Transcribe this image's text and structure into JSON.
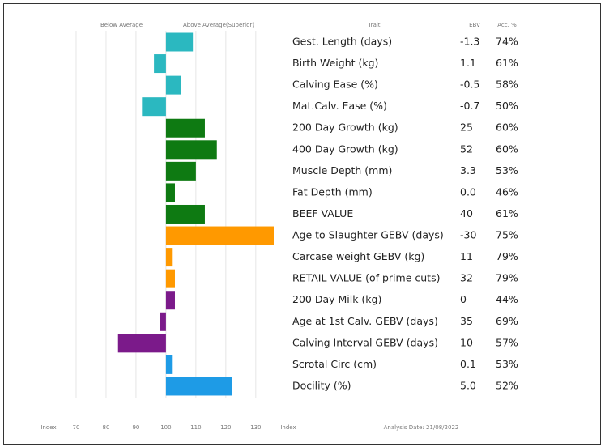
{
  "chart_data": {
    "type": "bar",
    "orientation": "horizontal",
    "header_left": "Below Average",
    "header_right": "Above Average(Superior)",
    "col_trait": "Trait",
    "col_ebv": "EBV",
    "col_acc": "Acc. %",
    "xlabel": "Index",
    "xlabel_right": "Index",
    "footnote": "Analysis Date: 21/08/2022",
    "baseline": 100,
    "categories": [
      "Gest. Length (days)",
      "Birth Weight (kg)",
      "Calving Ease (%)",
      "Mat.Calv. Ease (%)",
      "200 Day Growth (kg)",
      "400 Day Growth (kg)",
      "Muscle Depth (mm)",
      "Fat Depth (mm)",
      "BEEF VALUE",
      "Age to Slaughter GEBV (days)",
      "Carcase weight GEBV (kg)",
      "RETAIL VALUE (of prime cuts)",
      "200 Day Milk (kg)",
      "Age at 1st Calv. GEBV (days)",
      "Calving Interval GEBV (days)",
      "Scrotal Circ (cm)",
      "Docility (%)"
    ],
    "values": [
      109,
      96,
      105,
      92,
      113,
      117,
      110,
      103,
      113,
      136,
      102,
      103,
      103,
      98,
      84,
      102,
      122
    ],
    "colors": [
      "#2bb8c0",
      "#2bb8c0",
      "#2bb8c0",
      "#2bb8c0",
      "#0e7a12",
      "#0e7a12",
      "#0e7a12",
      "#0e7a12",
      "#0e7a12",
      "#ff9900",
      "#ff9900",
      "#ff9900",
      "#7b1a8a",
      "#7b1a8a",
      "#7b1a8a",
      "#1e9be6",
      "#1e9be6"
    ],
    "ebv": [
      "-1.3",
      "1.1",
      "-0.5",
      "-0.7",
      "25",
      "52",
      "3.3",
      "0.0",
      "40",
      "-30",
      "11",
      "32",
      "0",
      "35",
      "10",
      "0.1",
      "5.0"
    ],
    "acc": [
      "74%",
      "61%",
      "58%",
      "50%",
      "60%",
      "60%",
      "53%",
      "46%",
      "61%",
      "75%",
      "79%",
      "79%",
      "44%",
      "69%",
      "57%",
      "53%",
      "52%"
    ],
    "xlim": [
      60,
      136
    ],
    "xticks": [
      70,
      80,
      90,
      100,
      110,
      120,
      130
    ],
    "grid": true
  }
}
